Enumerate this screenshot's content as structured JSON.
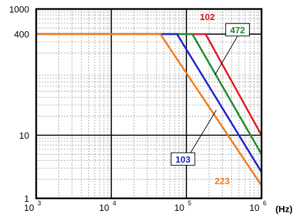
{
  "chart_data": {
    "type": "line",
    "x_scale": "log",
    "y_scale": "log",
    "xlim": [
      1000,
      1000000
    ],
    "ylim": [
      1,
      1000
    ],
    "x_ticks": [
      {
        "base": "10",
        "exp": "3",
        "value": 1000
      },
      {
        "base": "10",
        "exp": "4",
        "value": 10000
      },
      {
        "base": "10",
        "exp": "5",
        "value": 100000
      },
      {
        "base": "10",
        "exp": "6",
        "value": 1000000
      }
    ],
    "y_ticks": [
      {
        "label": "1000",
        "value": 1000
      },
      {
        "label": "400",
        "value": 400
      },
      {
        "label": "10",
        "value": 10
      },
      {
        "label": "1",
        "value": 1
      }
    ],
    "unit_label": "(Hz)",
    "grid": true,
    "reference_lines": {
      "y": [
        400,
        10
      ],
      "color": "#000000"
    },
    "series": [
      {
        "label": "102",
        "color": "#e0191f",
        "points": [
          [
            1000,
            400
          ],
          [
            180000,
            400
          ],
          [
            1000000,
            10
          ]
        ],
        "label_at": [
          190000,
          760
        ],
        "label_box": false
      },
      {
        "label": "472",
        "color": "#1a8a28",
        "points": [
          [
            1000,
            400
          ],
          [
            120000,
            400
          ],
          [
            1000000,
            5
          ]
        ],
        "label_at": [
          480000,
          470
        ],
        "label_box": true,
        "leader_to": [
          240000,
          90
        ]
      },
      {
        "label": "103",
        "color": "#1a22c8",
        "points": [
          [
            1000,
            400
          ],
          [
            75000,
            400
          ],
          [
            1000000,
            2.6
          ]
        ],
        "label_at": [
          90000,
          4.2
        ],
        "label_box": true,
        "leader_to": [
          250000,
          25
        ]
      },
      {
        "label": "223",
        "color": "#f07a1a",
        "points": [
          [
            1000,
            400
          ],
          [
            45000,
            400
          ],
          [
            1000000,
            1.6
          ]
        ],
        "label_at": [
          300000,
          1.9
        ],
        "label_box": false
      }
    ]
  }
}
